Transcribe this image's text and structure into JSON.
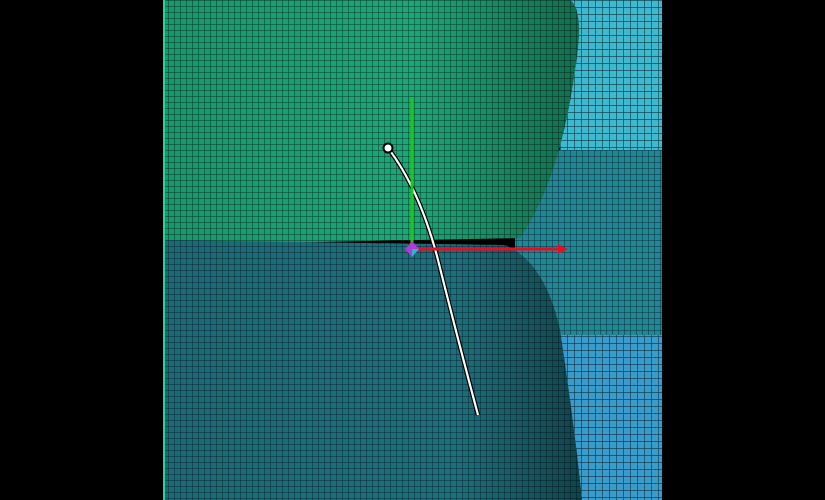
{
  "viewport": {
    "background": "#000000"
  },
  "colors": {
    "mesh_top": "#1aa877",
    "mesh_top_dark": "#0d5e44",
    "mesh_bottom": "#1d6f7c",
    "mesh_bottom_dark": "#0c3f4a",
    "mesh_right_upper": "#3fb9d0",
    "mesh_right_mid": "#1f8796",
    "mesh_right_lower": "#3a9ccc",
    "axis_x": "#e0102a",
    "axis_y": "#18c81e",
    "curve": "#ffffff",
    "origin_marker": "#b23bd6",
    "origin_marker_2": "#2fb4d3"
  },
  "icons": {
    "gizmo": "transform-gizmo-icon",
    "curve_handle": "curve-handle-icon"
  }
}
